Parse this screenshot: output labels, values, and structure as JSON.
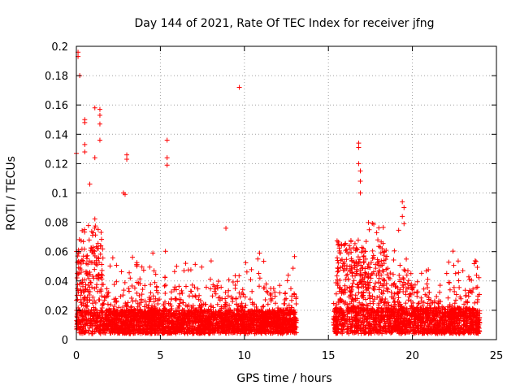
{
  "chart_data": {
    "type": "scatter",
    "title": "Day 144 of 2021, Rate Of TEC Index for receiver jfng",
    "xlabel": "GPS time / hours",
    "ylabel": "ROTI / TECUs",
    "xlim": [
      0,
      25
    ],
    "ylim": [
      0,
      0.2
    ],
    "xticks": [
      0,
      5,
      10,
      15,
      20,
      25
    ],
    "xtick_labels": [
      "0",
      "5",
      "10",
      "15",
      "20",
      "25"
    ],
    "yticks": [
      0,
      0.02,
      0.04,
      0.06,
      0.08,
      0.1,
      0.12,
      0.14,
      0.16,
      0.18,
      0.2
    ],
    "ytick_labels": [
      "0",
      "0.02",
      "0.04",
      "0.06",
      "0.08",
      "0.1",
      "0.12",
      "0.14",
      "0.16",
      "0.18",
      "0.2"
    ],
    "grid": true,
    "marker": "+",
    "color": "#ff0000",
    "series": [
      {
        "name": "ROTI",
        "segments": [
          {
            "x_start": 0.0,
            "x_end": 13.1,
            "baseline": 0.012,
            "spread": 0.012
          },
          {
            "x_start": 15.3,
            "x_end": 24.0,
            "baseline": 0.012,
            "spread": 0.014
          }
        ],
        "notable_points": [
          {
            "x": 0.1,
            "y": 0.196
          },
          {
            "x": 0.1,
            "y": 0.193
          },
          {
            "x": 0.2,
            "y": 0.18
          },
          {
            "x": 0.5,
            "y": 0.15
          },
          {
            "x": 0.5,
            "y": 0.148
          },
          {
            "x": 1.1,
            "y": 0.158
          },
          {
            "x": 1.4,
            "y": 0.157
          },
          {
            "x": 1.4,
            "y": 0.153
          },
          {
            "x": 1.4,
            "y": 0.147
          },
          {
            "x": 1.4,
            "y": 0.136
          },
          {
            "x": 0.0,
            "y": 0.127
          },
          {
            "x": 0.5,
            "y": 0.133
          },
          {
            "x": 0.5,
            "y": 0.128
          },
          {
            "x": 1.1,
            "y": 0.124
          },
          {
            "x": 3.0,
            "y": 0.126
          },
          {
            "x": 3.0,
            "y": 0.123
          },
          {
            "x": 5.4,
            "y": 0.136
          },
          {
            "x": 5.4,
            "y": 0.124
          },
          {
            "x": 5.4,
            "y": 0.119
          },
          {
            "x": 9.7,
            "y": 0.172
          },
          {
            "x": 8.9,
            "y": 0.076
          },
          {
            "x": 2.8,
            "y": 0.1
          },
          {
            "x": 2.9,
            "y": 0.099
          },
          {
            "x": 0.8,
            "y": 0.106
          },
          {
            "x": 16.8,
            "y": 0.134
          },
          {
            "x": 16.8,
            "y": 0.131
          },
          {
            "x": 16.8,
            "y": 0.12
          },
          {
            "x": 16.9,
            "y": 0.115
          },
          {
            "x": 16.9,
            "y": 0.108
          },
          {
            "x": 16.9,
            "y": 0.1
          },
          {
            "x": 19.4,
            "y": 0.094
          },
          {
            "x": 19.5,
            "y": 0.09
          },
          {
            "x": 19.4,
            "y": 0.084
          },
          {
            "x": 19.5,
            "y": 0.079
          },
          {
            "x": 23.0,
            "y": 0.047
          },
          {
            "x": 10.9,
            "y": 0.059
          },
          {
            "x": 10.8,
            "y": 0.055
          }
        ]
      }
    ]
  }
}
